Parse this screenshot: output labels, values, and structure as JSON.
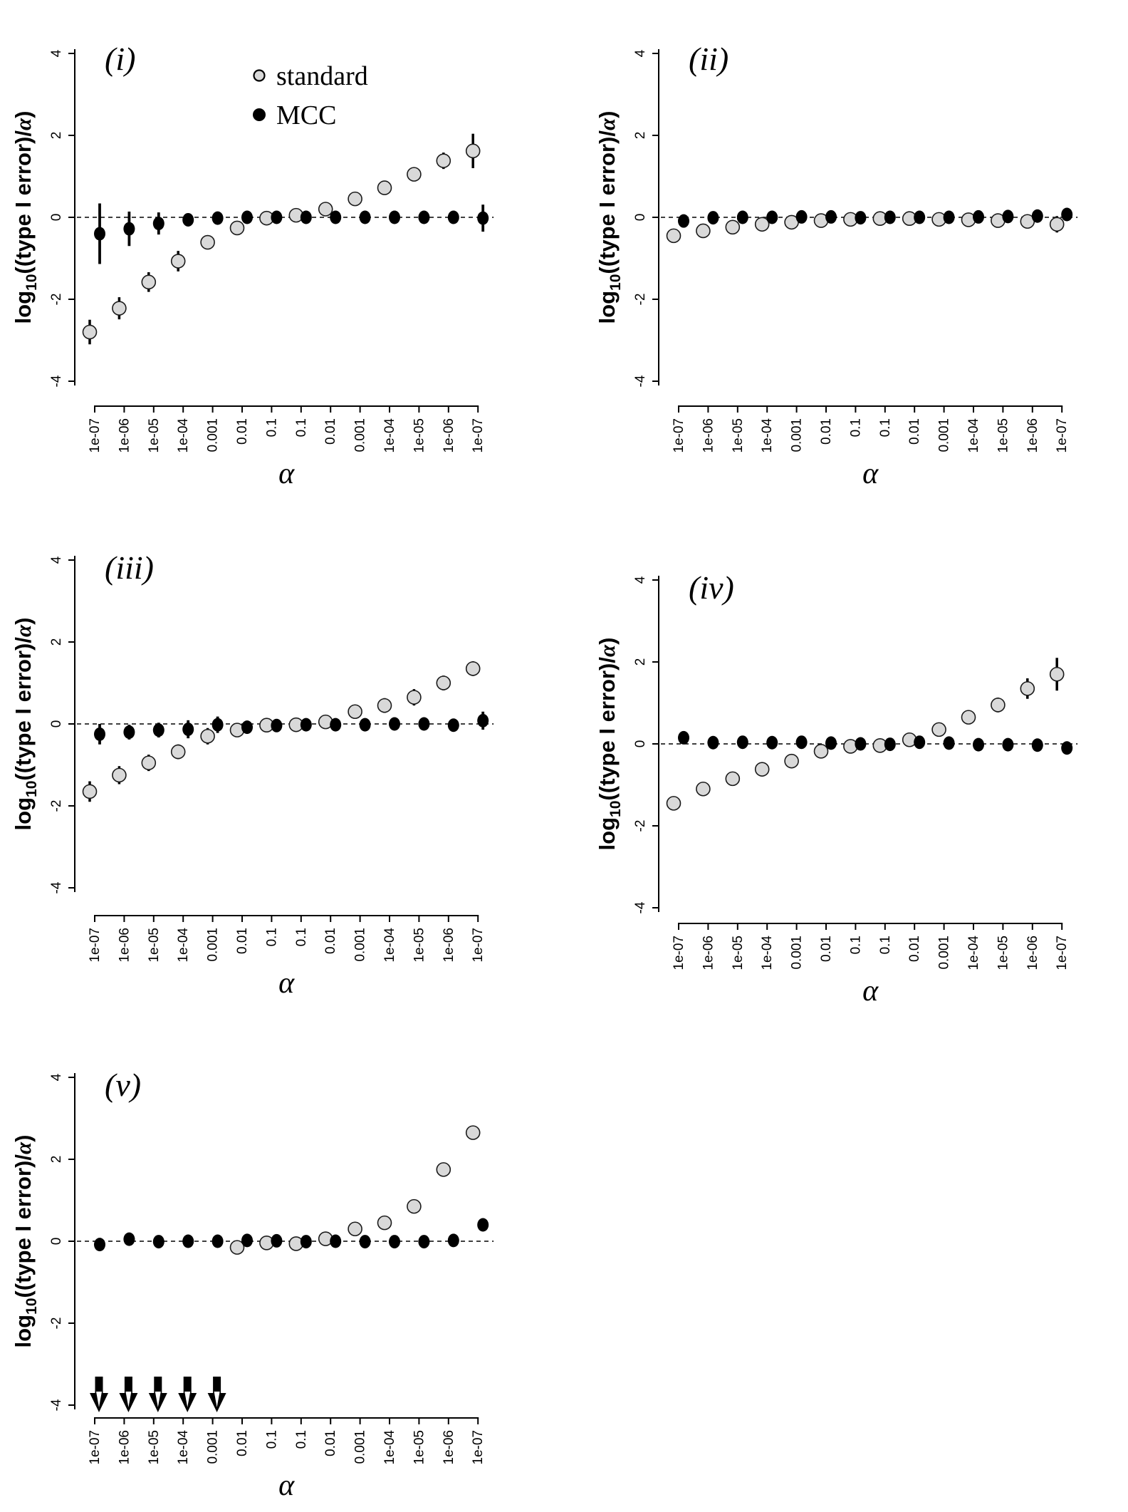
{
  "figure": {
    "kind": "five-panel scatter figure comparing type I error calibration",
    "background": "#ffffff",
    "y_axis_label": {
      "prefix": "log",
      "subscript": "10",
      "middle": "((type I error)/",
      "alpha": "α",
      "suffix": ")"
    },
    "x_axis_label": "α",
    "y_ticks": [
      "4",
      "2",
      "0",
      "-2",
      "-4"
    ],
    "ylim": [
      -4,
      4
    ],
    "zero_reference_line": "dashed"
  },
  "legend": {
    "location": "top of panel (i)",
    "items": [
      {
        "label": "standard",
        "marker": "gray-circle"
      },
      {
        "label": "MCC",
        "marker": "black-circle"
      }
    ]
  },
  "colors": {
    "standard_fill": "#d9d9d9",
    "standard_stroke": "#1a1a1a",
    "mcc_fill": "#000000",
    "axis": "#000000"
  },
  "chart_data": [
    {
      "panel": "(i)",
      "type": "scatter",
      "categories": [
        "1e-07",
        "1e-06",
        "1e-05",
        "1e-04",
        "0.001",
        "0.01",
        "0.1",
        "0.1",
        "0.01",
        "0.001",
        "1e-04",
        "1e-05",
        "1e-06",
        "1e-07"
      ],
      "xlabel": "α",
      "ylabel": "log10((type I error)/α)",
      "ylim": [
        -4,
        4
      ],
      "legend_visible": true,
      "series": [
        {
          "name": "standard",
          "values": [
            -2.8,
            -2.22,
            -1.58,
            -1.07,
            -0.61,
            -0.26,
            -0.02,
            0.05,
            0.2,
            0.45,
            0.72,
            1.05,
            1.38,
            1.62
          ],
          "errors": [
            0.3,
            0.27,
            0.24,
            0.25,
            0.15,
            0.12,
            0.05,
            0.05,
            0.06,
            0.1,
            0.12,
            0.15,
            0.2,
            0.42
          ]
        },
        {
          "name": "MCC",
          "values": [
            -0.4,
            -0.28,
            -0.15,
            -0.06,
            -0.02,
            0.0,
            0.0,
            0.0,
            0.0,
            0.0,
            0.0,
            0.0,
            0.0,
            -0.02
          ],
          "errors": [
            0.74,
            0.42,
            0.27,
            0.13,
            0.07,
            0.04,
            0.03,
            0.03,
            0.03,
            0.03,
            0.03,
            0.03,
            0.04,
            0.33
          ]
        }
      ]
    },
    {
      "panel": "(ii)",
      "type": "scatter",
      "categories": [
        "1e-07",
        "1e-06",
        "1e-05",
        "1e-04",
        "0.001",
        "0.01",
        "0.1",
        "0.1",
        "0.01",
        "0.001",
        "1e-04",
        "1e-05",
        "1e-06",
        "1e-07"
      ],
      "xlabel": "α",
      "ylabel": "log10((type I error)/α)",
      "ylim": [
        -4,
        4
      ],
      "legend_visible": false,
      "series": [
        {
          "name": "standard",
          "values": [
            -0.45,
            -0.33,
            -0.24,
            -0.17,
            -0.12,
            -0.08,
            -0.05,
            -0.03,
            -0.03,
            -0.05,
            -0.06,
            -0.08,
            -0.1,
            -0.17
          ],
          "errors": [
            0.13,
            0.06,
            0.04,
            0.03,
            0.03,
            0.02,
            0.02,
            0.02,
            0.02,
            0.02,
            0.03,
            0.03,
            0.05,
            0.2
          ]
        },
        {
          "name": "MCC",
          "values": [
            -0.09,
            -0.01,
            0.0,
            0.0,
            0.01,
            0.01,
            -0.01,
            0.0,
            0.0,
            0.0,
            0.01,
            0.02,
            0.03,
            0.07
          ],
          "errors": [
            0.13,
            0.05,
            0.03,
            0.02,
            0.02,
            0.02,
            0.02,
            0.02,
            0.02,
            0.02,
            0.02,
            0.03,
            0.04,
            0.1
          ]
        }
      ]
    },
    {
      "panel": "(iii)",
      "type": "scatter",
      "categories": [
        "1e-07",
        "1e-06",
        "1e-05",
        "1e-04",
        "0.001",
        "0.01",
        "0.1",
        "0.1",
        "0.01",
        "0.001",
        "1e-04",
        "1e-05",
        "1e-06",
        "1e-07"
      ],
      "xlabel": "α",
      "ylabel": "log10((type I error)/α)",
      "ylim": [
        -4,
        4
      ],
      "legend_visible": false,
      "series": [
        {
          "name": "standard",
          "values": [
            -1.65,
            -1.25,
            -0.95,
            -0.68,
            -0.3,
            -0.15,
            -0.03,
            -0.02,
            0.05,
            0.3,
            0.45,
            0.65,
            1.0,
            1.35
          ],
          "errors": [
            0.25,
            0.22,
            0.2,
            0.18,
            0.2,
            0.15,
            0.06,
            0.05,
            0.08,
            0.12,
            0.18,
            0.2,
            0.18,
            0.18
          ]
        },
        {
          "name": "MCC",
          "values": [
            -0.25,
            -0.2,
            -0.15,
            -0.13,
            -0.02,
            -0.08,
            -0.04,
            -0.02,
            -0.02,
            -0.02,
            0.0,
            0.0,
            -0.03,
            0.08
          ],
          "errors": [
            0.25,
            0.18,
            0.18,
            0.22,
            0.2,
            0.15,
            0.12,
            0.05,
            0.05,
            0.06,
            0.08,
            0.08,
            0.13,
            0.22
          ]
        }
      ]
    },
    {
      "panel": "(iv)",
      "type": "scatter",
      "categories": [
        "1e-07",
        "1e-06",
        "1e-05",
        "1e-04",
        "0.001",
        "0.01",
        "0.1",
        "0.1",
        "0.01",
        "0.001",
        "1e-04",
        "1e-05",
        "1e-06",
        "1e-07"
      ],
      "xlabel": "α",
      "ylabel": "log10((type I error)/α)",
      "ylim": [
        -4,
        4
      ],
      "legend_visible": false,
      "series": [
        {
          "name": "standard",
          "values": [
            -1.45,
            -1.1,
            -0.85,
            -0.62,
            -0.42,
            -0.18,
            -0.06,
            -0.04,
            0.1,
            0.35,
            0.65,
            0.95,
            1.35,
            1.7
          ],
          "errors": [
            0.1,
            0.06,
            0.05,
            0.05,
            0.04,
            0.04,
            0.03,
            0.03,
            0.04,
            0.06,
            0.1,
            0.18,
            0.25,
            0.4
          ]
        },
        {
          "name": "MCC",
          "values": [
            0.15,
            0.03,
            0.04,
            0.03,
            0.04,
            0.02,
            0.0,
            -0.01,
            0.04,
            0.02,
            -0.02,
            -0.02,
            -0.03,
            -0.1
          ],
          "errors": [
            0.15,
            0.05,
            0.05,
            0.04,
            0.04,
            0.03,
            0.03,
            0.03,
            0.04,
            0.04,
            0.04,
            0.04,
            0.05,
            0.12
          ]
        }
      ]
    },
    {
      "panel": "(v)",
      "type": "scatter",
      "categories": [
        "1e-07",
        "1e-06",
        "1e-05",
        "1e-04",
        "0.001",
        "0.01",
        "0.1",
        "0.1",
        "0.01",
        "0.001",
        "1e-04",
        "1e-05",
        "1e-06",
        "1e-07"
      ],
      "xlabel": "α",
      "ylabel": "log10((type I error)/α)",
      "ylim": [
        -4,
        4
      ],
      "legend_visible": false,
      "below_axis_arrow_category_indices": [
        0,
        1,
        2,
        3,
        4
      ],
      "below_axis_arrow_series": "standard",
      "series": [
        {
          "name": "standard",
          "values": [
            null,
            null,
            null,
            null,
            null,
            -0.15,
            -0.04,
            -0.06,
            0.06,
            0.3,
            0.45,
            0.85,
            1.75,
            2.65
          ],
          "errors": [
            0,
            0,
            0,
            0,
            0,
            0,
            0,
            0,
            0,
            0,
            0,
            0,
            0,
            0
          ]
        },
        {
          "name": "MCC",
          "values": [
            -0.08,
            0.05,
            -0.01,
            0.0,
            0.0,
            0.02,
            0.01,
            -0.01,
            0.0,
            -0.01,
            -0.01,
            -0.01,
            0.02,
            0.4
          ],
          "errors": [
            0,
            0,
            0,
            0,
            0,
            0,
            0,
            0,
            0,
            0,
            0,
            0,
            0,
            0
          ]
        }
      ]
    }
  ]
}
